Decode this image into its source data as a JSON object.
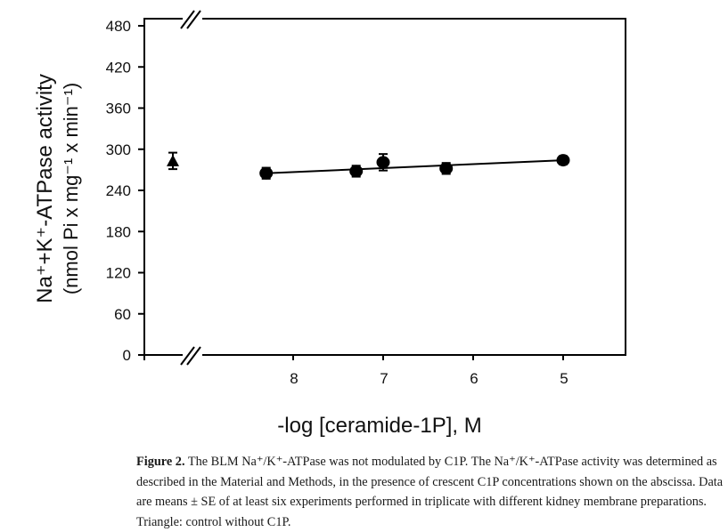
{
  "chart_data": {
    "type": "scatter",
    "title": "",
    "xlabel": "-log [ceramide-1P], M",
    "ylabel_line1": "Na⁺+K⁺-ATPase activity",
    "ylabel_line2": "(nmol Pi x mg⁻¹ x min⁻¹)",
    "x_reversed": true,
    "xlim": [
      9.3,
      4.3
    ],
    "ylim": [
      0,
      480
    ],
    "x_ticks": [
      8,
      7,
      6,
      5
    ],
    "y_ticks": [
      0,
      60,
      120,
      180,
      240,
      300,
      360,
      420,
      480
    ],
    "axis_breaks": [
      "x",
      "top-x"
    ],
    "grid": false,
    "legend": null,
    "series": [
      {
        "name": "Control without C1P",
        "marker": "triangle",
        "points": [
          {
            "x": "control",
            "y": 283,
            "err": 12
          }
        ]
      },
      {
        "name": "C1P",
        "marker": "circle",
        "points": [
          {
            "x": 8.3,
            "y": 265,
            "err": 8
          },
          {
            "x": 7.3,
            "y": 268,
            "err": 8
          },
          {
            "x": 7.0,
            "y": 281,
            "err": 12
          },
          {
            "x": 6.3,
            "y": 272,
            "err": 8
          },
          {
            "x": 5.0,
            "y": 284,
            "err": 6
          }
        ]
      },
      {
        "name": "Linear fit",
        "type": "line",
        "points": [
          {
            "x": 8.3,
            "y": 265
          },
          {
            "x": 5.0,
            "y": 284
          }
        ]
      }
    ]
  },
  "caption": {
    "label": "Figure 2.",
    "text": " The BLM Na⁺/K⁺-ATPase was not modulated by C1P. The Na⁺/K⁺-ATPase activity was determined as described in the Material and Methods, in the presence of crescent C1P concentrations shown on the abscissa. Data are means ± SE of at least six experiments performed in triplicate with different kidney membrane preparations. Triangle: control without C1P."
  }
}
